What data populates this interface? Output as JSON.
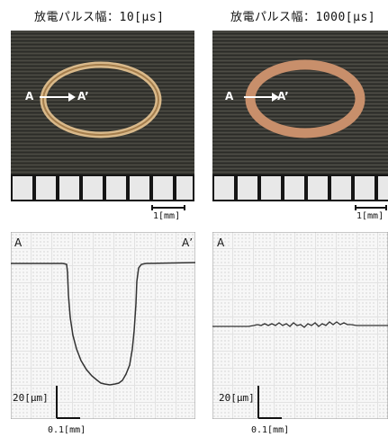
{
  "panels": [
    {
      "title": "放電パルス幅：10[μs]",
      "section_start": "A",
      "section_end": "A’",
      "photo_scale_label": "1[mm]",
      "profile_corner_start": "A",
      "profile_corner_end": "A’",
      "vertical_scale_label": "20[μm]",
      "horizontal_scale_label": "0.1[mm]",
      "ring_color": "#c9a46f"
    },
    {
      "title": "放電パルス幅：1000[μs]",
      "section_start": "A",
      "section_end": "A’",
      "photo_scale_label": "1[mm]",
      "profile_corner_start": "A",
      "profile_corner_end": "",
      "vertical_scale_label": "20[μm]",
      "horizontal_scale_label": "0.1[mm]",
      "ring_color": "#c88f6b"
    }
  ]
}
